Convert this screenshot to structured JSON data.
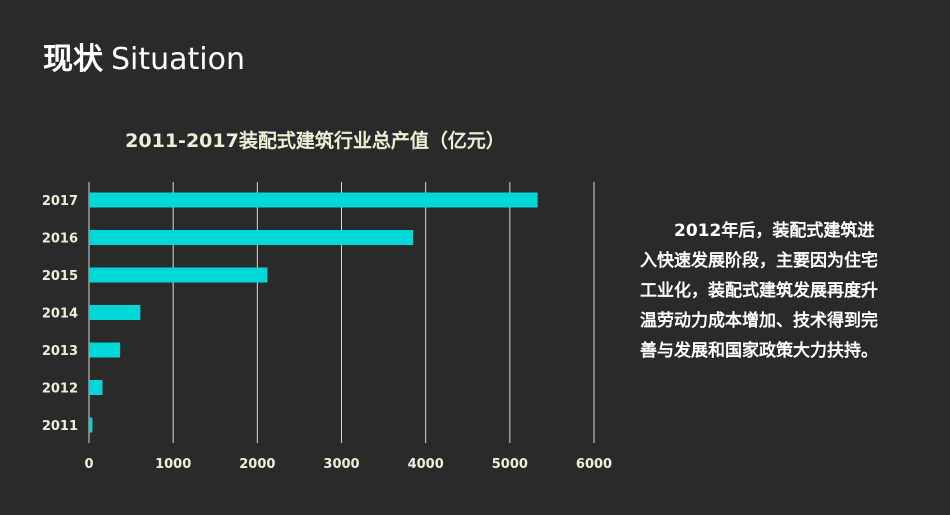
{
  "header": {
    "title_zh": "现状",
    "title_en": "Situation"
  },
  "chart_data": {
    "type": "bar",
    "orientation": "horizontal",
    "title": "2011-2017装配式建筑行业总产值（亿元）",
    "categories": [
      "2011",
      "2012",
      "2013",
      "2014",
      "2015",
      "2016",
      "2017"
    ],
    "values": [
      40,
      160,
      370,
      610,
      2120,
      3850,
      5330
    ],
    "xlim": [
      0,
      6000
    ],
    "xticks": [
      "0",
      "1000",
      "2000",
      "3000",
      "4000",
      "5000",
      "6000"
    ],
    "grid": "vertical",
    "bar_color": "#00d8d8",
    "legend": "none"
  },
  "side_text": "2012年后，装配式建筑进入快速发展阶段，主要因为住宅工业化，装配式建筑发展再度升温劳动力成本增加、技术得到完善与发展和国家政策大力扶持。"
}
